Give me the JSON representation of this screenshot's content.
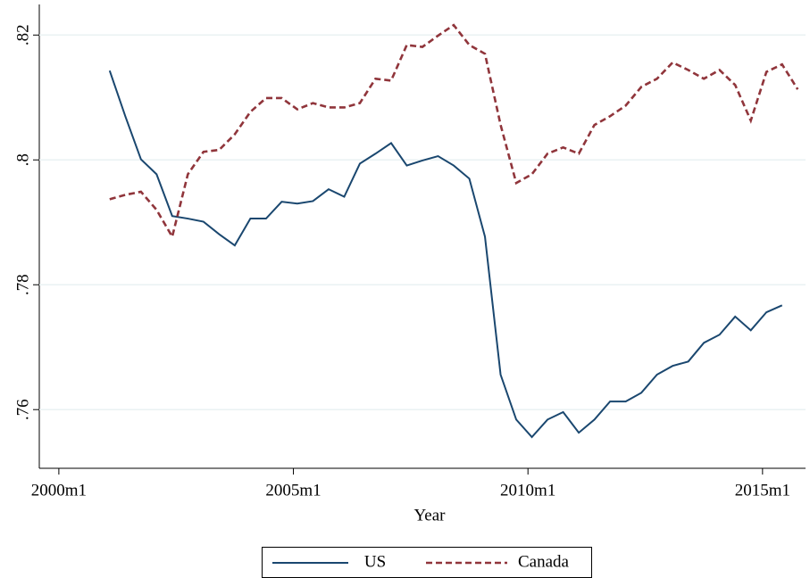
{
  "chart_data": {
    "type": "line",
    "x_label": "Year",
    "x": [
      493,
      497,
      501,
      505,
      509,
      513,
      517,
      521,
      525,
      529,
      533,
      537,
      541,
      545,
      549,
      553,
      557,
      561,
      565,
      569,
      573,
      577,
      581,
      585,
      589,
      593,
      597,
      601,
      605,
      609,
      613,
      617,
      621,
      625,
      629,
      633,
      637,
      641,
      645,
      649,
      653,
      657,
      661,
      665,
      669
    ],
    "xlim": [
      475,
      671
    ],
    "xticks": [
      {
        "value": 480,
        "label": "2000m1"
      },
      {
        "value": 540,
        "label": "2005m1"
      },
      {
        "value": 600,
        "label": "2010m1"
      },
      {
        "value": 660,
        "label": "2015m1"
      }
    ],
    "ylim": [
      0.7506,
      0.8249
    ],
    "yticks": [
      {
        "value": 0.76,
        "label": ".76"
      },
      {
        "value": 0.78,
        "label": ".78"
      },
      {
        "value": 0.8,
        "label": ".8"
      },
      {
        "value": 0.82,
        "label": ".82"
      }
    ],
    "grid": true,
    "legend_position": "bottom",
    "series": [
      {
        "name": "US",
        "color": "#1a476f",
        "line_style": "solid",
        "values": [
          0.8143,
          0.807,
          0.8001,
          0.7977,
          0.791,
          0.7906,
          0.7901,
          0.7881,
          0.7863,
          0.7906,
          0.7906,
          0.7933,
          0.793,
          0.7934,
          0.7953,
          0.7941,
          0.7994,
          0.801,
          0.8027,
          0.7991,
          0.7999,
          0.8006,
          0.7991,
          0.797,
          0.7877,
          0.7656,
          0.7584,
          0.7556,
          0.7584,
          0.7596,
          0.7563,
          0.7584,
          0.7613,
          0.7613,
          0.7627,
          0.7656,
          0.767,
          0.7677,
          0.7707,
          0.772,
          0.7749,
          0.7727,
          0.7756,
          0.7767,
          null
        ]
      },
      {
        "name": "Canada",
        "color": "#90353b",
        "line_style": "dashed",
        "values": [
          0.7937,
          0.7944,
          0.7949,
          0.792,
          0.7877,
          0.7977,
          0.8013,
          0.8016,
          0.8041,
          0.8077,
          0.8099,
          0.8099,
          0.8081,
          0.8091,
          0.8084,
          0.8084,
          0.8091,
          0.813,
          0.8127,
          0.8184,
          0.8181,
          0.8199,
          0.8216,
          0.8184,
          0.817,
          0.8056,
          0.7963,
          0.7977,
          0.801,
          0.802,
          0.801,
          0.8056,
          0.807,
          0.8087,
          0.8117,
          0.813,
          0.8156,
          0.8144,
          0.813,
          0.8144,
          0.812,
          0.8063,
          0.8141,
          0.8153,
          0.8113
        ]
      }
    ]
  }
}
